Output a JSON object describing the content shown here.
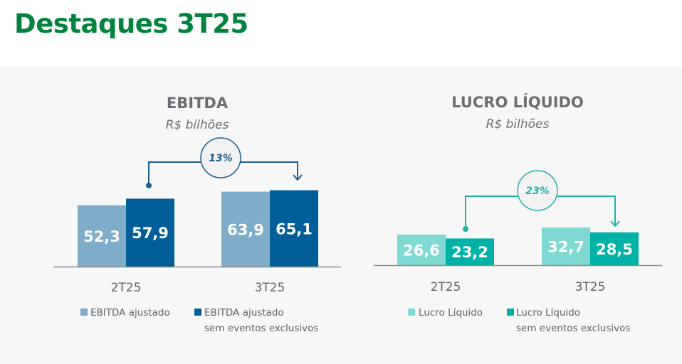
{
  "page_title": "Destaques 3T25",
  "chart_data": [
    {
      "type": "bar",
      "title": "EBITDA",
      "subtitle": "R$ bilhões",
      "categories": [
        "2T25",
        "3T25"
      ],
      "series": [
        {
          "name": "EBITDA ajustado",
          "name_line2": "",
          "color": "#7fadc9",
          "values": [
            52.3,
            63.9
          ],
          "labels": [
            "52,3",
            "63,9"
          ]
        },
        {
          "name": "EBITDA ajustado",
          "name_line2": "sem eventos exclusivos",
          "color": "#005f99",
          "values": [
            57.9,
            65.1
          ],
          "labels": [
            "57,9",
            "65,1"
          ]
        }
      ],
      "growth_label": "13%",
      "accent": "#1b5e8f",
      "ylim": [
        0,
        70
      ]
    },
    {
      "type": "bar",
      "title": "LUCRO LÍQUIDO",
      "subtitle": "R$ bilhões",
      "categories": [
        "2T25",
        "3T25"
      ],
      "series": [
        {
          "name": "Lucro Líquido",
          "name_line2": "",
          "color": "#80d8d2",
          "values": [
            26.6,
            32.7
          ],
          "labels": [
            "26,6",
            "32,7"
          ]
        },
        {
          "name": "Lucro Líquido",
          "name_line2": "sem eventos exclusivos",
          "color": "#00b2a6",
          "values": [
            23.2,
            28.5
          ],
          "labels": [
            "23,2",
            "28,5"
          ]
        }
      ],
      "growth_label": "23%",
      "accent": "#1fb3a8",
      "ylim": [
        0,
        70
      ]
    }
  ]
}
